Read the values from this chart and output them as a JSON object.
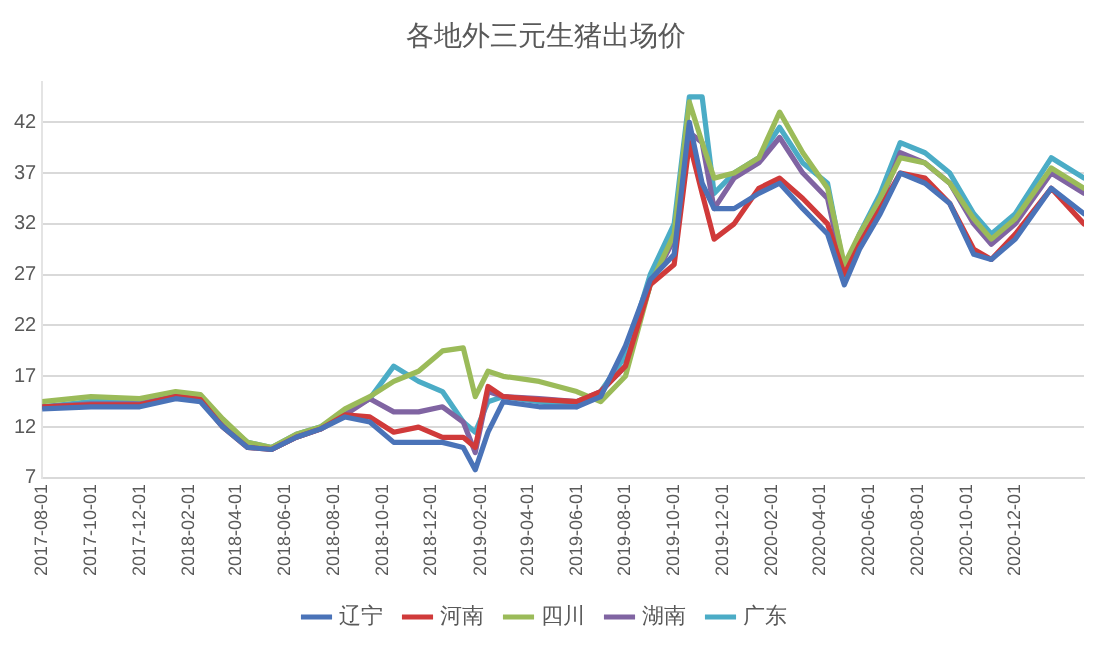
{
  "chart_data": {
    "type": "line",
    "title": "各地外三元生猪出场价",
    "x": [
      "2017-08-01",
      "2017-10-01",
      "2017-12-01",
      "2018-01-15",
      "2018-02-15",
      "2018-03-15",
      "2018-04-15",
      "2018-05-15",
      "2018-06-15",
      "2018-07-15",
      "2018-08-15",
      "2018-09-15",
      "2018-10-15",
      "2018-11-15",
      "2018-12-15",
      "2019-01-10",
      "2019-01-25",
      "2019-02-10",
      "2019-03-01",
      "2019-04-15",
      "2019-06-01",
      "2019-07-01",
      "2019-08-01",
      "2019-09-01",
      "2019-10-01",
      "2019-10-20",
      "2019-11-05",
      "2019-11-20",
      "2019-12-15",
      "2020-01-15",
      "2020-02-10",
      "2020-03-10",
      "2020-04-10",
      "2020-05-01",
      "2020-05-20",
      "2020-06-15",
      "2020-07-10",
      "2020-08-10",
      "2020-09-10",
      "2020-10-10",
      "2020-11-01",
      "2020-12-01",
      "2021-01-15",
      "2021-02-25"
    ],
    "series": [
      {
        "name": "辽宁",
        "color": "#4a73b8",
        "values": [
          13.8,
          14,
          14,
          14.8,
          14.5,
          12,
          10,
          9.8,
          11,
          11.8,
          13,
          12.5,
          10.5,
          10.5,
          10.5,
          10,
          7.8,
          11.5,
          14.5,
          14,
          14,
          15,
          20,
          26.5,
          29,
          42,
          36,
          33.5,
          33.5,
          35,
          36,
          33.5,
          31,
          26,
          29.5,
          33,
          37,
          36,
          34,
          29,
          28.5,
          30.5,
          35.5,
          33
        ]
      },
      {
        "name": "河南",
        "color": "#d03a3a",
        "values": [
          14,
          14.2,
          14.2,
          15,
          14.7,
          12,
          10,
          9.8,
          11,
          11.8,
          13.2,
          13,
          11.5,
          12,
          11,
          11,
          10,
          16,
          15,
          14.7,
          14.5,
          15.5,
          18,
          26,
          28,
          40,
          35,
          30.5,
          32,
          35.5,
          36.5,
          34.5,
          32,
          27,
          30,
          33.5,
          37,
          36.5,
          34,
          29.5,
          28.5,
          31,
          35.5,
          32
        ]
      },
      {
        "name": "四川",
        "color": "#9bbb59",
        "values": [
          14.5,
          15,
          14.8,
          15.5,
          15.2,
          12.8,
          10.5,
          10,
          11.3,
          12,
          13.8,
          15,
          16.5,
          17.5,
          19.5,
          19.8,
          15,
          17.5,
          17,
          16.5,
          15.5,
          14.5,
          17,
          26,
          31,
          44,
          40,
          36.5,
          37,
          38.5,
          43,
          39,
          35.5,
          28,
          31,
          34.5,
          38.5,
          38,
          36,
          32.5,
          30.5,
          32.5,
          37.5,
          35.5
        ]
      },
      {
        "name": "湖南",
        "color": "#8064a2",
        "values": [
          14,
          14.3,
          14.3,
          15,
          14.8,
          12.2,
          10.2,
          9.8,
          11,
          11.8,
          13.2,
          14.8,
          13.5,
          13.5,
          14,
          12.5,
          9.5,
          15.5,
          15,
          14.8,
          14.5,
          15.5,
          18,
          26,
          30.5,
          41,
          40,
          33.5,
          36.5,
          38,
          40.5,
          37,
          34.5,
          27,
          30.5,
          34,
          39,
          38,
          36,
          32,
          30,
          32,
          37,
          35
        ]
      },
      {
        "name": "广东",
        "color": "#4bacc6",
        "values": [
          14,
          14.5,
          14.5,
          15.3,
          15,
          12.5,
          10.5,
          10,
          11.3,
          12,
          13.5,
          14.8,
          18,
          16.5,
          15.5,
          12.5,
          11.5,
          14.5,
          15,
          14.5,
          14,
          15.5,
          19,
          27,
          32,
          44.5,
          44.5,
          35,
          37,
          38.5,
          41.5,
          38,
          36,
          27.5,
          31,
          35,
          40,
          39,
          37,
          33,
          31,
          33,
          38.5,
          36.5
        ]
      }
    ],
    "xlim": [
      "2017-08-01",
      "2021-02-25"
    ],
    "xticks": [
      "2017-08-01",
      "2017-10-01",
      "2017-12-01",
      "2018-02-01",
      "2018-04-01",
      "2018-06-01",
      "2018-08-01",
      "2018-10-01",
      "2018-12-01",
      "2019-02-01",
      "2019-04-01",
      "2019-06-01",
      "2019-08-01",
      "2019-10-01",
      "2019-12-01",
      "2020-02-01",
      "2020-04-01",
      "2020-06-01",
      "2020-08-01",
      "2020-10-01",
      "2020-12-01"
    ],
    "ylim": [
      7,
      46
    ],
    "yticks": [
      7,
      12,
      17,
      22,
      27,
      32,
      37,
      42
    ],
    "grid": "y",
    "legend": "bottom",
    "marker": "none",
    "line_style": "solid"
  }
}
